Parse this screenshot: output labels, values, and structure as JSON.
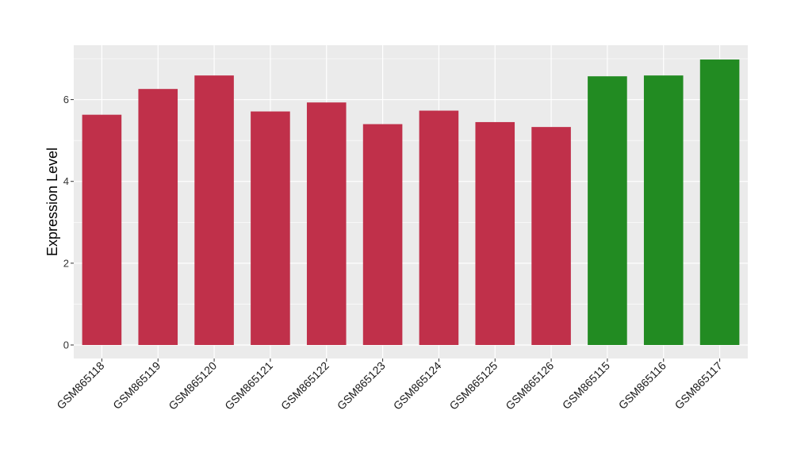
{
  "chart_data": {
    "type": "bar",
    "title": "",
    "xlabel": "",
    "ylabel": "Expression Level",
    "categories": [
      "GSM865118",
      "GSM865119",
      "GSM865120",
      "GSM865121",
      "GSM865122",
      "GSM865123",
      "GSM865124",
      "GSM865125",
      "GSM865126",
      "GSM865115",
      "GSM865116",
      "GSM865117"
    ],
    "values": [
      5.63,
      6.26,
      6.59,
      5.71,
      5.93,
      5.4,
      5.73,
      5.45,
      5.33,
      6.57,
      6.59,
      6.98
    ],
    "bar_colors": [
      "#C0304A",
      "#C0304A",
      "#C0304A",
      "#C0304A",
      "#C0304A",
      "#C0304A",
      "#C0304A",
      "#C0304A",
      "#C0304A",
      "#228B22",
      "#228B22",
      "#228B22"
    ],
    "ylim": [
      -0.33,
      7.33
    ],
    "yticks": [
      0,
      2,
      4,
      6
    ],
    "grid": true,
    "panel_background": "#EBEBEB",
    "grid_color": "#FFFFFF"
  }
}
